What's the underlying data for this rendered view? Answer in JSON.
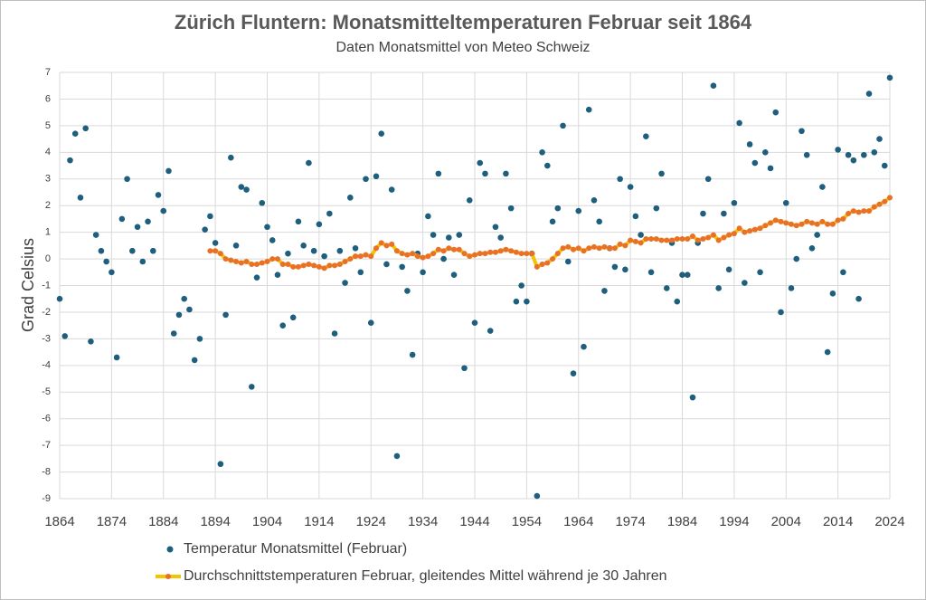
{
  "chart_data": {
    "type": "scatter",
    "title": "Zürich Fluntern: Monatsmitteltemperaturen Februar seit 1864",
    "subtitle": "Daten Monatsmittel von Meteo Schweiz",
    "y_label": "Grad Celsius",
    "x": [
      1864,
      1865,
      1866,
      1867,
      1868,
      1869,
      1870,
      1871,
      1872,
      1873,
      1874,
      1875,
      1876,
      1877,
      1878,
      1879,
      1880,
      1881,
      1882,
      1883,
      1884,
      1885,
      1886,
      1887,
      1888,
      1889,
      1890,
      1891,
      1892,
      1893,
      1894,
      1895,
      1896,
      1897,
      1898,
      1899,
      1900,
      1901,
      1902,
      1903,
      1904,
      1905,
      1906,
      1907,
      1908,
      1909,
      1910,
      1911,
      1912,
      1913,
      1914,
      1915,
      1916,
      1917,
      1918,
      1919,
      1920,
      1921,
      1922,
      1923,
      1924,
      1925,
      1926,
      1927,
      1928,
      1929,
      1930,
      1931,
      1932,
      1933,
      1934,
      1935,
      1936,
      1937,
      1938,
      1939,
      1940,
      1941,
      1942,
      1943,
      1944,
      1945,
      1946,
      1947,
      1948,
      1949,
      1950,
      1951,
      1952,
      1953,
      1954,
      1955,
      1956,
      1957,
      1958,
      1959,
      1960,
      1961,
      1962,
      1963,
      1964,
      1965,
      1966,
      1967,
      1968,
      1969,
      1970,
      1971,
      1972,
      1973,
      1974,
      1975,
      1976,
      1977,
      1978,
      1979,
      1980,
      1981,
      1982,
      1983,
      1984,
      1985,
      1986,
      1987,
      1988,
      1989,
      1990,
      1991,
      1992,
      1993,
      1994,
      1995,
      1996,
      1997,
      1998,
      1999,
      2000,
      2001,
      2002,
      2003,
      2004,
      2005,
      2006,
      2007,
      2008,
      2009,
      2010,
      2011,
      2012,
      2013,
      2014,
      2015,
      2016,
      2017,
      2018,
      2019,
      2020,
      2021,
      2022,
      2023,
      2024
    ],
    "series": [
      {
        "name": "Temperatur Monatsmittel (Februar)",
        "color": "#1f5f7e",
        "style": "points",
        "values": [
          -1.5,
          -2.9,
          3.7,
          4.7,
          2.3,
          4.9,
          -3.1,
          0.9,
          0.3,
          -0.1,
          -0.5,
          -3.7,
          1.5,
          3.0,
          0.3,
          1.2,
          -0.1,
          1.4,
          0.3,
          2.4,
          1.8,
          3.3,
          -2.8,
          -2.1,
          -1.5,
          -1.9,
          -3.8,
          -3.0,
          1.1,
          1.6,
          0.6,
          -7.7,
          -2.1,
          3.8,
          0.5,
          2.7,
          2.6,
          -4.8,
          -0.7,
          2.1,
          1.2,
          0.7,
          -0.6,
          -2.5,
          0.2,
          -2.2,
          1.4,
          0.5,
          3.6,
          0.3,
          1.3,
          0.1,
          1.7,
          -2.8,
          0.3,
          -0.9,
          2.3,
          0.4,
          -0.5,
          3.0,
          -2.4,
          3.1,
          4.7,
          -0.2,
          2.6,
          -7.4,
          -0.3,
          -1.2,
          -3.6,
          0.2,
          -0.5,
          1.6,
          0.9,
          3.2,
          0.0,
          0.8,
          -0.6,
          0.9,
          -4.1,
          2.2,
          -2.4,
          3.6,
          3.2,
          -2.7,
          1.2,
          0.8,
          3.2,
          1.9,
          -1.6,
          -1.0,
          -1.6,
          0.2,
          -8.9,
          4.0,
          3.5,
          1.4,
          1.9,
          5.0,
          -0.1,
          -4.3,
          1.8,
          -3.3,
          5.6,
          2.2,
          1.4,
          -1.2,
          0.4,
          -0.3,
          3.0,
          -0.4,
          2.7,
          1.6,
          0.9,
          4.6,
          -0.5,
          1.9,
          3.2,
          -1.1,
          0.6,
          -1.6,
          -0.6,
          -0.6,
          -5.2,
          0.6,
          1.7,
          3.0,
          6.5,
          -1.1,
          1.7,
          -0.4,
          2.1,
          5.1,
          -0.9,
          4.3,
          3.6,
          -0.5,
          4.0,
          3.4,
          5.5,
          -2.0,
          2.1,
          -1.1,
          0.0,
          4.8,
          3.9,
          0.4,
          0.9,
          2.7,
          -3.5,
          -1.3,
          4.1,
          -0.5,
          3.9,
          3.7,
          -1.5,
          3.9,
          6.2,
          4.0,
          4.5,
          3.5,
          6.8
        ]
      },
      {
        "name": "Durchschnittstemperaturen Februar, gleitendes Mittel während je 30 Jahren",
        "color": "#f5c400",
        "marker_color": "#e8702a",
        "style": "line",
        "values": [
          null,
          null,
          null,
          null,
          null,
          null,
          null,
          null,
          null,
          null,
          null,
          null,
          null,
          null,
          null,
          null,
          null,
          null,
          null,
          null,
          null,
          null,
          null,
          null,
          null,
          null,
          null,
          null,
          null,
          0.3,
          0.3,
          0.2,
          0.0,
          -0.05,
          -0.1,
          -0.15,
          -0.1,
          -0.2,
          -0.2,
          -0.15,
          -0.1,
          0.0,
          0.0,
          -0.2,
          -0.2,
          -0.3,
          -0.3,
          -0.25,
          -0.2,
          -0.25,
          -0.3,
          -0.35,
          -0.25,
          -0.25,
          -0.2,
          -0.1,
          0.0,
          0.1,
          0.1,
          0.15,
          0.1,
          0.4,
          0.6,
          0.5,
          0.55,
          0.3,
          0.2,
          0.15,
          0.2,
          0.1,
          0.05,
          0.1,
          0.2,
          0.35,
          0.3,
          0.4,
          0.35,
          0.35,
          0.2,
          0.1,
          0.15,
          0.2,
          0.2,
          0.25,
          0.25,
          0.3,
          0.35,
          0.3,
          0.25,
          0.2,
          0.2,
          0.2,
          -0.3,
          -0.2,
          -0.15,
          0.0,
          0.2,
          0.4,
          0.45,
          0.35,
          0.4,
          0.3,
          0.4,
          0.45,
          0.4,
          0.45,
          0.4,
          0.4,
          0.55,
          0.5,
          0.7,
          0.65,
          0.6,
          0.75,
          0.75,
          0.75,
          0.7,
          0.7,
          0.7,
          0.75,
          0.75,
          0.75,
          0.85,
          0.7,
          0.75,
          0.8,
          0.9,
          0.7,
          0.8,
          0.9,
          0.95,
          1.15,
          1.0,
          1.05,
          1.1,
          1.15,
          1.25,
          1.35,
          1.45,
          1.4,
          1.35,
          1.3,
          1.25,
          1.3,
          1.4,
          1.35,
          1.3,
          1.4,
          1.3,
          1.3,
          1.45,
          1.5,
          1.7,
          1.8,
          1.75,
          1.8,
          1.8,
          1.95,
          2.05,
          2.15,
          2.3
        ]
      }
    ],
    "xlim": [
      1864,
      2024
    ],
    "xticks": [
      1864,
      1874,
      1884,
      1894,
      1904,
      1914,
      1924,
      1934,
      1944,
      1954,
      1964,
      1974,
      1984,
      1994,
      2004,
      2014,
      2024
    ],
    "ylim": [
      -9,
      7
    ],
    "yticks": [
      -9,
      -8,
      -7,
      -6,
      -5,
      -4,
      -3,
      -2,
      -1,
      0,
      1,
      2,
      3,
      4,
      5,
      6,
      7
    ],
    "grid": true,
    "legend": "bottom"
  }
}
